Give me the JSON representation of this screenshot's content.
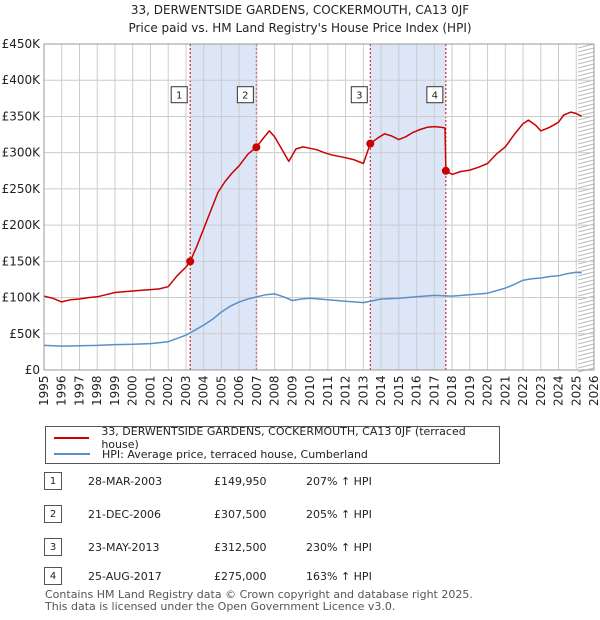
{
  "chart_data": {
    "type": "line",
    "title": "33, DERWENTSIDE GARDENS, COCKERMOUTH, CA13 0JF",
    "subtitle": "Price paid vs. HM Land Registry's House Price Index (HPI)",
    "xlim": [
      1995,
      2026
    ],
    "ylim": [
      0,
      450000
    ],
    "y_ticks": [
      {
        "value": 0,
        "label": "£0"
      },
      {
        "value": 50000,
        "label": "£50K"
      },
      {
        "value": 100000,
        "label": "£100K"
      },
      {
        "value": 150000,
        "label": "£150K"
      },
      {
        "value": 200000,
        "label": "£200K"
      },
      {
        "value": 250000,
        "label": "£250K"
      },
      {
        "value": 300000,
        "label": "£300K"
      },
      {
        "value": 350000,
        "label": "£350K"
      },
      {
        "value": 400000,
        "label": "£400K"
      },
      {
        "value": 450000,
        "label": "£450K"
      }
    ],
    "x_ticks": [
      "1995",
      "1996",
      "1997",
      "1998",
      "1999",
      "2000",
      "2001",
      "2002",
      "2003",
      "2004",
      "2005",
      "2006",
      "2007",
      "2008",
      "2009",
      "2010",
      "2011",
      "2012",
      "2013",
      "2014",
      "2015",
      "2016",
      "2017",
      "2018",
      "2019",
      "2020",
      "2021",
      "2022",
      "2023",
      "2024",
      "2025",
      "2026"
    ],
    "grid": true,
    "shaded_ranges": [
      [
        2003.24,
        2006.97
      ],
      [
        2013.39,
        2017.65
      ]
    ],
    "hatched_from": 2025.1,
    "series": [
      {
        "name": "33, DERWENTSIDE GARDENS, COCKERMOUTH, CA13 0JF (terraced house)",
        "color": "#cc0000",
        "points": [
          [
            1995.0,
            102000
          ],
          [
            1995.5,
            99000
          ],
          [
            1996.0,
            94000
          ],
          [
            1996.5,
            97000
          ],
          [
            1997.0,
            98000
          ],
          [
            1997.5,
            100000
          ],
          [
            1998.0,
            101000
          ],
          [
            1998.5,
            104000
          ],
          [
            1999.0,
            107000
          ],
          [
            1999.5,
            108000
          ],
          [
            2000.0,
            109000
          ],
          [
            2000.5,
            110000
          ],
          [
            2001.0,
            111000
          ],
          [
            2001.5,
            112000
          ],
          [
            2002.0,
            115000
          ],
          [
            2002.5,
            130000
          ],
          [
            2003.0,
            142000
          ],
          [
            2003.24,
            149950
          ],
          [
            2003.6,
            170000
          ],
          [
            2004.0,
            195000
          ],
          [
            2004.4,
            220000
          ],
          [
            2004.8,
            245000
          ],
          [
            2005.2,
            260000
          ],
          [
            2005.6,
            272000
          ],
          [
            2006.0,
            282000
          ],
          [
            2006.5,
            298000
          ],
          [
            2006.97,
            307500
          ],
          [
            2007.3,
            318000
          ],
          [
            2007.7,
            330000
          ],
          [
            2008.0,
            322000
          ],
          [
            2008.4,
            305000
          ],
          [
            2008.8,
            288000
          ],
          [
            2009.2,
            305000
          ],
          [
            2009.6,
            308000
          ],
          [
            2010.0,
            306000
          ],
          [
            2010.4,
            304000
          ],
          [
            2010.8,
            300000
          ],
          [
            2011.2,
            297000
          ],
          [
            2011.6,
            295000
          ],
          [
            2012.0,
            293000
          ],
          [
            2012.5,
            290000
          ],
          [
            2013.0,
            285000
          ],
          [
            2013.39,
            312500
          ],
          [
            2013.8,
            320000
          ],
          [
            2014.2,
            326000
          ],
          [
            2014.6,
            323000
          ],
          [
            2015.0,
            318000
          ],
          [
            2015.4,
            322000
          ],
          [
            2015.8,
            328000
          ],
          [
            2016.2,
            332000
          ],
          [
            2016.6,
            335000
          ],
          [
            2017.0,
            336000
          ],
          [
            2017.4,
            335000
          ],
          [
            2017.6,
            334000
          ],
          [
            2017.65,
            275000
          ],
          [
            2018.0,
            270000
          ],
          [
            2018.5,
            274000
          ],
          [
            2019.0,
            276000
          ],
          [
            2019.5,
            280000
          ],
          [
            2020.0,
            285000
          ],
          [
            2020.5,
            298000
          ],
          [
            2021.0,
            308000
          ],
          [
            2021.5,
            325000
          ],
          [
            2022.0,
            340000
          ],
          [
            2022.3,
            345000
          ],
          [
            2022.7,
            338000
          ],
          [
            2023.0,
            330000
          ],
          [
            2023.5,
            335000
          ],
          [
            2024.0,
            342000
          ],
          [
            2024.3,
            352000
          ],
          [
            2024.7,
            356000
          ],
          [
            2025.0,
            354000
          ],
          [
            2025.3,
            350000
          ]
        ]
      },
      {
        "name": "HPI: Average price, terraced house, Cumberland",
        "color": "#5b8fc7",
        "points": [
          [
            1995.0,
            34000
          ],
          [
            1996.0,
            33000
          ],
          [
            1997.0,
            33500
          ],
          [
            1998.0,
            34000
          ],
          [
            1999.0,
            35000
          ],
          [
            2000.0,
            35500
          ],
          [
            2001.0,
            36500
          ],
          [
            2002.0,
            39000
          ],
          [
            2003.0,
            48000
          ],
          [
            2003.5,
            55000
          ],
          [
            2004.0,
            62000
          ],
          [
            2004.5,
            70000
          ],
          [
            2005.0,
            80000
          ],
          [
            2005.5,
            88000
          ],
          [
            2006.0,
            94000
          ],
          [
            2006.5,
            98000
          ],
          [
            2007.0,
            101000
          ],
          [
            2007.5,
            104000
          ],
          [
            2008.0,
            105000
          ],
          [
            2008.5,
            101000
          ],
          [
            2009.0,
            96000
          ],
          [
            2009.5,
            98000
          ],
          [
            2010.0,
            99000
          ],
          [
            2011.0,
            97000
          ],
          [
            2012.0,
            95000
          ],
          [
            2013.0,
            93000
          ],
          [
            2014.0,
            98000
          ],
          [
            2015.0,
            99000
          ],
          [
            2016.0,
            101000
          ],
          [
            2017.0,
            103000
          ],
          [
            2018.0,
            102000
          ],
          [
            2019.0,
            104000
          ],
          [
            2020.0,
            106000
          ],
          [
            2021.0,
            113000
          ],
          [
            2021.5,
            118000
          ],
          [
            2022.0,
            124000
          ],
          [
            2022.5,
            126000
          ],
          [
            2023.0,
            127000
          ],
          [
            2023.5,
            129000
          ],
          [
            2024.0,
            130000
          ],
          [
            2024.5,
            133000
          ],
          [
            2025.0,
            135000
          ],
          [
            2025.3,
            134000
          ]
        ]
      }
    ],
    "sales": [
      {
        "id": "1",
        "x": 2003.24,
        "y": 149950
      },
      {
        "id": "2",
        "x": 2006.97,
        "y": 307500
      },
      {
        "id": "3",
        "x": 2013.39,
        "y": 312500
      },
      {
        "id": "4",
        "x": 2017.65,
        "y": 275000
      }
    ],
    "marker_label_y": 380000
  },
  "legend": {
    "price_paid": "33, DERWENTSIDE GARDENS, COCKERMOUTH, CA13 0JF (terraced house)",
    "hpi": "HPI: Average price, terraced house, Cumberland"
  },
  "sales_table": [
    {
      "num": "1",
      "date": "28-MAR-2003",
      "price": "£149,950",
      "hpi": "207% ↑ HPI"
    },
    {
      "num": "2",
      "date": "21-DEC-2006",
      "price": "£307,500",
      "hpi": "205% ↑ HPI"
    },
    {
      "num": "3",
      "date": "23-MAY-2013",
      "price": "£312,500",
      "hpi": "230% ↑ HPI"
    },
    {
      "num": "4",
      "date": "25-AUG-2017",
      "price": "£275,000",
      "hpi": "163% ↑ HPI"
    }
  ],
  "footer": {
    "line1": "Contains HM Land Registry data © Crown copyright and database right 2025.",
    "line2": "This data is licensed under the Open Government Licence v3.0."
  },
  "colors": {
    "price_line": "#cc0000",
    "hpi_line": "#5b8fc7",
    "shade": "#dde6f7",
    "grid": "#cccccc"
  }
}
